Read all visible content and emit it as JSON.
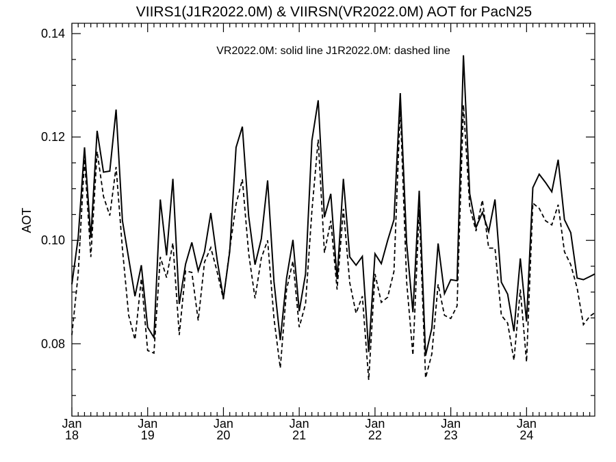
{
  "chart_data": {
    "type": "line",
    "title": "VIIRS1(J1R2022.0M) & VIIRSN(VR2022.0M)  AOT for PacN25",
    "xlabel": "",
    "ylabel": "AOT",
    "annotation": "VR2022.0M: solid line   J1R2022.0M: dashed line",
    "ylim": [
      0.066,
      0.142
    ],
    "xlim": [
      0,
      6.9
    ],
    "y_ticks": [
      0.08,
      0.1,
      0.12,
      0.14
    ],
    "y_tick_labels": [
      "0.08",
      "0.10",
      "0.12",
      "0.14"
    ],
    "x_ticks": [
      0,
      1,
      2,
      3,
      4,
      5,
      6
    ],
    "x_tick_labels": [
      [
        "Jan",
        "18"
      ],
      [
        "Jan",
        "19"
      ],
      [
        "Jan",
        "20"
      ],
      [
        "Jan",
        "21"
      ],
      [
        "Jan",
        "22"
      ],
      [
        "Jan",
        "23"
      ],
      [
        "Jan",
        "24"
      ]
    ],
    "grid": false,
    "series": [
      {
        "name": "VR2022.0M",
        "style": "solid",
        "color": "#000000",
        "x": [
          0.0,
          0.083,
          0.167,
          0.25,
          0.333,
          0.417,
          0.5,
          0.583,
          0.667,
          0.75,
          0.833,
          0.917,
          1.0,
          1.083,
          1.167,
          1.25,
          1.333,
          1.417,
          1.5,
          1.583,
          1.667,
          1.75,
          1.833,
          1.917,
          2.0,
          2.083,
          2.167,
          2.25,
          2.333,
          2.417,
          2.5,
          2.583,
          2.667,
          2.75,
          2.833,
          2.917,
          3.0,
          3.083,
          3.167,
          3.25,
          3.333,
          3.417,
          3.5,
          3.583,
          3.667,
          3.75,
          3.833,
          3.917,
          4.0,
          4.083,
          4.167,
          4.25,
          4.333,
          4.417,
          4.5,
          4.583,
          4.667,
          4.75,
          4.833,
          4.917,
          5.0,
          5.083,
          5.167,
          5.25,
          5.333,
          5.417,
          5.5,
          5.583,
          5.667,
          5.75,
          5.833,
          5.917,
          6.0,
          6.083,
          6.167,
          6.25,
          6.333,
          6.417,
          6.5,
          6.583,
          6.667,
          6.75,
          6.833,
          6.9
        ],
        "values": [
          0.0915,
          0.1005,
          0.118,
          0.1005,
          0.1212,
          0.1132,
          0.1134,
          0.1253,
          0.1038,
          0.0965,
          0.0892,
          0.0952,
          0.0832,
          0.0812,
          0.1079,
          0.0971,
          0.1119,
          0.0877,
          0.0954,
          0.0996,
          0.0941,
          0.0978,
          0.1053,
          0.0962,
          0.0888,
          0.0978,
          0.118,
          0.122,
          0.1047,
          0.0953,
          0.1003,
          0.1116,
          0.092,
          0.0807,
          0.0927,
          0.1001,
          0.0863,
          0.0935,
          0.1193,
          0.1271,
          0.1045,
          0.109,
          0.0925,
          0.1119,
          0.0968,
          0.0952,
          0.0969,
          0.0784,
          0.0974,
          0.0955,
          0.1,
          0.104,
          0.1285,
          0.0995,
          0.0861,
          0.1096,
          0.0777,
          0.083,
          0.0994,
          0.0897,
          0.0924,
          0.0922,
          0.1358,
          0.109,
          0.1025,
          0.1054,
          0.1017,
          0.1079,
          0.0919,
          0.0896,
          0.0824,
          0.0965,
          0.0843,
          0.1102,
          0.1128,
          0.1112,
          0.1094,
          0.1156,
          0.104,
          0.1015,
          0.0927,
          0.0924,
          0.093,
          0.0935
        ]
      },
      {
        "name": "J1R2022.0M",
        "style": "dashed",
        "color": "#000000",
        "x": [
          0.0,
          0.083,
          0.167,
          0.25,
          0.333,
          0.417,
          0.5,
          0.583,
          0.667,
          0.75,
          0.833,
          0.917,
          1.0,
          1.083,
          1.167,
          1.25,
          1.333,
          1.417,
          1.5,
          1.583,
          1.667,
          1.75,
          1.833,
          1.917,
          2.0,
          2.083,
          2.167,
          2.25,
          2.333,
          2.417,
          2.5,
          2.583,
          2.667,
          2.75,
          2.833,
          2.917,
          3.0,
          3.083,
          3.167,
          3.25,
          3.333,
          3.417,
          3.5,
          3.583,
          3.667,
          3.75,
          3.833,
          3.917,
          4.0,
          4.083,
          4.167,
          4.25,
          4.333,
          4.417,
          4.5,
          4.583,
          4.667,
          4.75,
          4.833,
          4.917,
          5.0,
          5.083,
          5.167,
          5.25,
          5.333,
          5.417,
          5.5,
          5.583,
          5.667,
          5.75,
          5.833,
          5.917,
          6.0,
          6.083,
          6.167,
          6.25,
          6.333,
          6.417,
          6.5,
          6.583,
          6.667,
          6.75,
          6.833,
          6.9
        ],
        "values": [
          0.0817,
          0.0935,
          0.1158,
          0.0968,
          0.1172,
          0.1085,
          0.1048,
          0.1142,
          0.0983,
          0.0855,
          0.0808,
          0.0926,
          0.0787,
          0.0782,
          0.0968,
          0.0928,
          0.0995,
          0.0817,
          0.0941,
          0.0938,
          0.0845,
          0.0958,
          0.0986,
          0.0939,
          0.0886,
          0.0982,
          0.107,
          0.1118,
          0.0975,
          0.0888,
          0.0966,
          0.1,
          0.0849,
          0.0753,
          0.0905,
          0.096,
          0.0832,
          0.0877,
          0.1057,
          0.1195,
          0.0976,
          0.1038,
          0.0905,
          0.1061,
          0.0918,
          0.0859,
          0.0892,
          0.073,
          0.0935,
          0.088,
          0.089,
          0.094,
          0.1258,
          0.092,
          0.0778,
          0.106,
          0.0734,
          0.078,
          0.0915,
          0.0855,
          0.0849,
          0.0873,
          0.1262,
          0.1065,
          0.1018,
          0.1078,
          0.0985,
          0.0985,
          0.0855,
          0.084,
          0.0768,
          0.0905,
          0.0765,
          0.1072,
          0.1062,
          0.1038,
          0.103,
          0.1069,
          0.0978,
          0.0953,
          0.0908,
          0.0837,
          0.0853,
          0.086
        ]
      }
    ]
  }
}
